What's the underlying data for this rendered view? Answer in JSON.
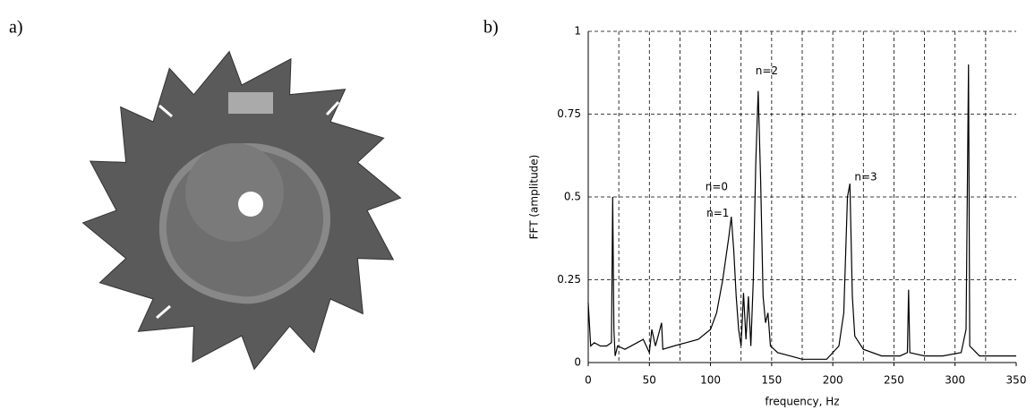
{
  "panels": {
    "a": "a)",
    "b": "b)"
  },
  "chart_data": {
    "type": "line",
    "xlabel": "frequency, Hz",
    "ylabel": "FFT (amplitude)",
    "x": [
      0,
      2,
      5,
      10,
      15,
      19,
      20,
      21,
      22,
      24,
      30,
      40,
      45,
      50,
      52,
      55,
      60,
      61,
      70,
      80,
      90,
      100,
      105,
      110,
      115,
      117,
      119,
      121,
      123,
      125,
      127,
      129,
      131,
      133,
      135,
      137,
      139,
      141,
      143,
      145,
      147,
      149,
      155,
      165,
      175,
      185,
      195,
      205,
      209,
      212,
      214,
      216,
      218,
      225,
      240,
      255,
      261,
      262,
      263,
      275,
      290,
      305,
      309,
      311,
      312,
      320,
      335,
      350
    ],
    "values": [
      0.18,
      0.05,
      0.06,
      0.05,
      0.05,
      0.06,
      0.5,
      0.1,
      0.02,
      0.05,
      0.04,
      0.06,
      0.07,
      0.03,
      0.1,
      0.05,
      0.12,
      0.04,
      0.05,
      0.06,
      0.07,
      0.1,
      0.15,
      0.25,
      0.38,
      0.44,
      0.34,
      0.2,
      0.1,
      0.05,
      0.21,
      0.07,
      0.2,
      0.05,
      0.25,
      0.6,
      0.82,
      0.55,
      0.2,
      0.12,
      0.15,
      0.05,
      0.03,
      0.02,
      0.01,
      0.01,
      0.01,
      0.05,
      0.15,
      0.5,
      0.54,
      0.2,
      0.08,
      0.04,
      0.02,
      0.02,
      0.03,
      0.22,
      0.03,
      0.02,
      0.02,
      0.03,
      0.1,
      0.9,
      0.05,
      0.02,
      0.02,
      0.02
    ],
    "color": "#000000",
    "xlim": [
      0,
      350
    ],
    "xticks": [
      0,
      50,
      100,
      150,
      200,
      250,
      300,
      350
    ],
    "xgrid": [
      25,
      50,
      75,
      100,
      125,
      150,
      175,
      200,
      225,
      250,
      275,
      300,
      325
    ],
    "ylim": [
      0,
      1
    ],
    "yticks": [
      0,
      0.25,
      0.5,
      0.75,
      1
    ],
    "grid": true,
    "annotations": [
      {
        "text": "n=0",
        "x": 105,
        "y": 0.53
      },
      {
        "text": "n=1",
        "x": 106,
        "y": 0.45
      },
      {
        "text": "n=2",
        "x": 146,
        "y": 0.88
      },
      {
        "text": "n=3",
        "x": 227,
        "y": 0.56
      }
    ]
  }
}
